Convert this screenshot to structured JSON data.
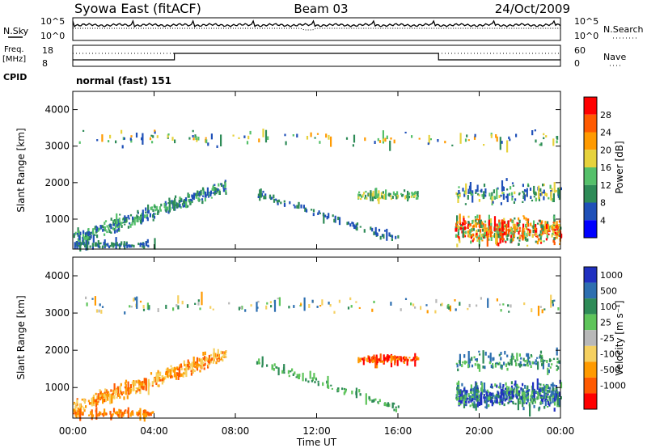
{
  "header": {
    "station": "Syowa East (fitACF)",
    "beam": "Beam 03",
    "date": "24/Oct/2009"
  },
  "panels": {
    "nsky_label": "N.Sky",
    "nsky_ticks": [
      "10^5",
      "10^0"
    ],
    "nsearch_label": "N.Search",
    "nsearch_ticks": [
      "10^5",
      "10^0"
    ],
    "freq_label": "Freq.",
    "freq_unit": "[MHz]",
    "freq_ticks": [
      "18",
      "8"
    ],
    "nave_label": "Nave",
    "nave_ticks": [
      "60",
      "0"
    ],
    "cpid_label": "CPID",
    "cpid_text": "normal (fast) 151"
  },
  "chart_data": [
    {
      "type": "heatmap",
      "name": "power",
      "ylabel": "Slant Range [km]",
      "yticks": [
        1000,
        2000,
        3000,
        4000
      ],
      "ylim": [
        180,
        4500
      ],
      "colorbar_label": "Power [dB]",
      "colorbar_ticks": [
        "4",
        "8",
        "12",
        "16",
        "20",
        "24",
        "28"
      ],
      "colors": [
        "#0000ff",
        "#1f50b8",
        "#2e8b57",
        "#55c06a",
        "#e6d23c",
        "#ff9a00",
        "#ff5a00",
        "#ff0000"
      ]
    },
    {
      "type": "heatmap",
      "name": "velocity",
      "ylabel": "Slant Range [km]",
      "yticks": [
        1000,
        2000,
        3000,
        4000
      ],
      "ylim": [
        180,
        4500
      ],
      "colorbar_label": "Velocity [m s⁻¹]",
      "colorbar_ticks": [
        "1000",
        "500",
        "100",
        "25",
        "-25",
        "-100",
        "-500",
        "-1000"
      ],
      "colors": [
        "#2030c0",
        "#2d6fb0",
        "#2e8b57",
        "#5ec45a",
        "#b8b8b8",
        "#f5d060",
        "#ff9a00",
        "#ff5a00",
        "#ff0000"
      ]
    }
  ],
  "xaxis": {
    "label": "Time UT",
    "ticks": [
      "00:00",
      "04:00",
      "08:00",
      "12:00",
      "16:00",
      "20:00",
      "00:00"
    ]
  }
}
